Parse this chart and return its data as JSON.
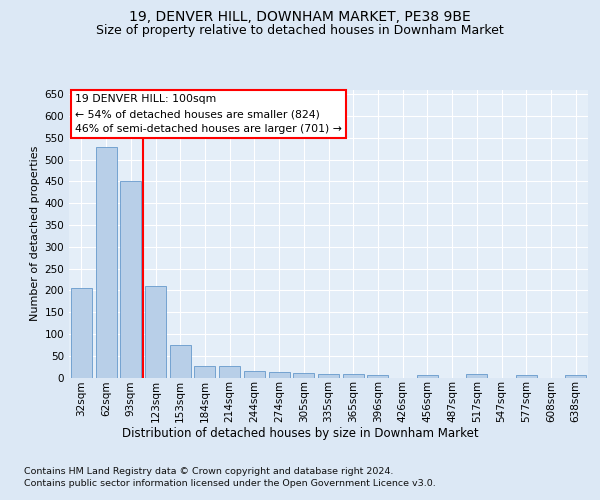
{
  "title1": "19, DENVER HILL, DOWNHAM MARKET, PE38 9BE",
  "title2": "Size of property relative to detached houses in Downham Market",
  "xlabel": "Distribution of detached houses by size in Downham Market",
  "ylabel": "Number of detached properties",
  "footnote1": "Contains HM Land Registry data © Crown copyright and database right 2024.",
  "footnote2": "Contains public sector information licensed under the Open Government Licence v3.0.",
  "categories": [
    "32sqm",
    "62sqm",
    "93sqm",
    "123sqm",
    "153sqm",
    "184sqm",
    "214sqm",
    "244sqm",
    "274sqm",
    "305sqm",
    "335sqm",
    "365sqm",
    "396sqm",
    "426sqm",
    "456sqm",
    "487sqm",
    "517sqm",
    "547sqm",
    "577sqm",
    "608sqm",
    "638sqm"
  ],
  "values": [
    205,
    530,
    450,
    210,
    75,
    27,
    27,
    15,
    12,
    10,
    7,
    7,
    5,
    0,
    5,
    0,
    7,
    0,
    5,
    0,
    5
  ],
  "bar_color": "#b8cfe8",
  "bar_edge_color": "#6699cc",
  "red_line_x": 2.5,
  "annotation_line1": "19 DENVER HILL: 100sqm",
  "annotation_line2": "← 54% of detached houses are smaller (824)",
  "annotation_line3": "46% of semi-detached houses are larger (701) →",
  "ylim": [
    0,
    660
  ],
  "yticks": [
    0,
    50,
    100,
    150,
    200,
    250,
    300,
    350,
    400,
    450,
    500,
    550,
    600,
    650
  ],
  "fig_bg_color": "#dce8f5",
  "plot_bg_color": "#e4eef8",
  "grid_color": "#ffffff",
  "title1_fontsize": 10,
  "title2_fontsize": 9,
  "tick_fontsize": 7.5,
  "ylabel_fontsize": 8,
  "xlabel_fontsize": 8.5,
  "annot_fontsize": 7.8,
  "footnote_fontsize": 6.8
}
